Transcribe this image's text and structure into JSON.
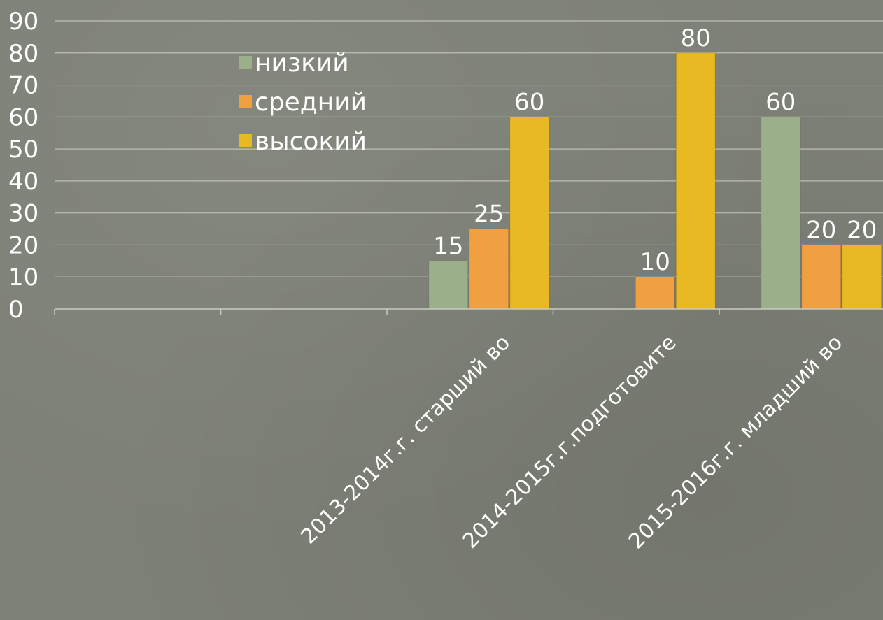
{
  "chart_data": {
    "type": "bar",
    "categories": [
      "",
      "",
      "2013-2014г.г. старший во",
      "2014-2015г.г.подготовите",
      "2015-2016г.г. младший во"
    ],
    "series": [
      {
        "name": "низкий",
        "color": "#9bb08a",
        "values": [
          null,
          null,
          15,
          null,
          60
        ]
      },
      {
        "name": "средний",
        "color": "#f0a040",
        "values": [
          null,
          null,
          25,
          10,
          20
        ]
      },
      {
        "name": "высокий",
        "color": "#e8b923",
        "values": [
          null,
          null,
          60,
          80,
          20
        ]
      }
    ],
    "ylim": [
      0,
      90
    ],
    "yticks": [
      0,
      10,
      20,
      30,
      40,
      50,
      60,
      70,
      80,
      90
    ],
    "grid": true,
    "legend": "top-left",
    "title": "",
    "xlabel": "",
    "ylabel": ""
  }
}
